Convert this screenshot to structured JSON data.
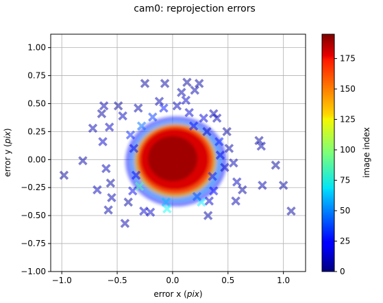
{
  "chart_data": {
    "type": "scatter",
    "title": "cam0: reprojection errors",
    "xlabel": "error x (pix)",
    "xlabel_prefix": "error x (",
    "xlabel_unit": "pix",
    "xlabel_suffix": ")",
    "ylabel": "error y (pix)",
    "ylabel_prefix": "error y (",
    "ylabel_unit": "pix",
    "ylabel_suffix": ")",
    "xlim": [
      -1.1,
      1.2
    ],
    "ylim": [
      -1.0,
      1.12
    ],
    "xticks": [
      -1.0,
      -0.5,
      0.0,
      0.5,
      1.0
    ],
    "xtick_labels": [
      "−1.0",
      "−0.5",
      "0.0",
      "0.5",
      "1.0"
    ],
    "yticks": [
      -1.0,
      -0.75,
      -0.5,
      -0.25,
      0.0,
      0.25,
      0.5,
      0.75,
      1.0
    ],
    "ytick_labels": [
      "−1.00",
      "−0.75",
      "−0.50",
      "−0.25",
      "0.00",
      "0.25",
      "0.50",
      "0.75",
      "1.00"
    ],
    "grid": true,
    "marker": "X",
    "alpha": 0.5,
    "colormap": "jet",
    "colorbar": {
      "label": "image index",
      "min": 0,
      "max": 195,
      "ticks": [
        0,
        25,
        50,
        75,
        100,
        125,
        150,
        175
      ],
      "tick_labels": [
        "0",
        "25",
        "50",
        "75",
        "100",
        "125",
        "150",
        "175"
      ]
    },
    "outliers": [
      {
        "x": -0.98,
        "y": -0.14,
        "c": 5
      },
      {
        "x": -0.81,
        "y": -0.01,
        "c": 8
      },
      {
        "x": -0.72,
        "y": 0.28,
        "c": 10
      },
      {
        "x": -0.68,
        "y": -0.27,
        "c": 12
      },
      {
        "x": -0.64,
        "y": 0.41,
        "c": 6
      },
      {
        "x": -0.62,
        "y": 0.48,
        "c": 9
      },
      {
        "x": -0.63,
        "y": 0.16,
        "c": 14
      },
      {
        "x": -0.6,
        "y": -0.08,
        "c": 11
      },
      {
        "x": -0.56,
        "y": -0.21,
        "c": 7
      },
      {
        "x": -0.57,
        "y": 0.29,
        "c": 13
      },
      {
        "x": -0.55,
        "y": -0.34,
        "c": 10
      },
      {
        "x": -0.58,
        "y": -0.45,
        "c": 8
      },
      {
        "x": -0.49,
        "y": 0.48,
        "c": 5
      },
      {
        "x": -0.45,
        "y": 0.39,
        "c": 12
      },
      {
        "x": -0.43,
        "y": -0.57,
        "c": 9
      },
      {
        "x": -0.4,
        "y": -0.38,
        "c": 6
      },
      {
        "x": -0.38,
        "y": 0.22,
        "c": 30
      },
      {
        "x": -0.36,
        "y": -0.28,
        "c": 22
      },
      {
        "x": -0.31,
        "y": 0.46,
        "c": 8
      },
      {
        "x": -0.26,
        "y": -0.46,
        "c": 15
      },
      {
        "x": -0.2,
        "y": -0.47,
        "c": 14
      },
      {
        "x": -0.12,
        "y": 0.52,
        "c": 10
      },
      {
        "x": -0.08,
        "y": 0.46,
        "c": 28
      },
      {
        "x": 0.04,
        "y": 0.48,
        "c": 12
      },
      {
        "x": 0.08,
        "y": 0.6,
        "c": 9
      },
      {
        "x": -0.07,
        "y": 0.68,
        "c": 7
      },
      {
        "x": -0.25,
        "y": 0.68,
        "c": 6
      },
      {
        "x": 0.12,
        "y": 0.53,
        "c": 14
      },
      {
        "x": 0.13,
        "y": 0.69,
        "c": 5
      },
      {
        "x": 0.2,
        "y": 0.62,
        "c": 8
      },
      {
        "x": 0.24,
        "y": 0.68,
        "c": 7
      },
      {
        "x": 0.15,
        "y": 0.42,
        "c": 16
      },
      {
        "x": 0.19,
        "y": 0.3,
        "c": 26
      },
      {
        "x": 0.28,
        "y": 0.37,
        "c": 18
      },
      {
        "x": 0.31,
        "y": 0.25,
        "c": 14
      },
      {
        "x": 0.37,
        "y": 0.41,
        "c": 9
      },
      {
        "x": 0.4,
        "y": 0.37,
        "c": 11
      },
      {
        "x": 0.42,
        "y": 0.16,
        "c": 30
      },
      {
        "x": 0.43,
        "y": 0.04,
        "c": 20
      },
      {
        "x": 0.47,
        "y": -0.07,
        "c": 13
      },
      {
        "x": 0.51,
        "y": 0.1,
        "c": 8
      },
      {
        "x": 0.49,
        "y": 0.25,
        "c": 6
      },
      {
        "x": 0.55,
        "y": -0.03,
        "c": 10
      },
      {
        "x": 0.58,
        "y": -0.2,
        "c": 12
      },
      {
        "x": 0.63,
        "y": -0.27,
        "c": 7
      },
      {
        "x": 0.57,
        "y": -0.37,
        "c": 9
      },
      {
        "x": 0.37,
        "y": -0.28,
        "c": 24
      },
      {
        "x": 0.33,
        "y": -0.37,
        "c": 15
      },
      {
        "x": 0.26,
        "y": -0.38,
        "c": 70
      },
      {
        "x": 0.32,
        "y": -0.5,
        "c": 8
      },
      {
        "x": 0.22,
        "y": -0.33,
        "c": 40
      },
      {
        "x": -0.06,
        "y": -0.38,
        "c": 60
      },
      {
        "x": -0.05,
        "y": -0.44,
        "c": 75
      },
      {
        "x": 0.78,
        "y": 0.17,
        "c": 6
      },
      {
        "x": 0.8,
        "y": 0.12,
        "c": 8
      },
      {
        "x": 0.81,
        "y": -0.23,
        "c": 9
      },
      {
        "x": 0.93,
        "y": -0.05,
        "c": 5
      },
      {
        "x": 1.0,
        "y": -0.23,
        "c": 7
      },
      {
        "x": 1.07,
        "y": -0.46,
        "c": 6
      },
      {
        "x": -0.18,
        "y": 0.38,
        "c": 35
      },
      {
        "x": -0.28,
        "y": 0.3,
        "c": 45
      },
      {
        "x": -0.35,
        "y": 0.1,
        "c": 20
      },
      {
        "x": -0.33,
        "y": -0.14,
        "c": 24
      },
      {
        "x": -0.3,
        "y": -0.24,
        "c": 90
      },
      {
        "x": 0.36,
        "y": -0.15,
        "c": 28
      }
    ]
  }
}
